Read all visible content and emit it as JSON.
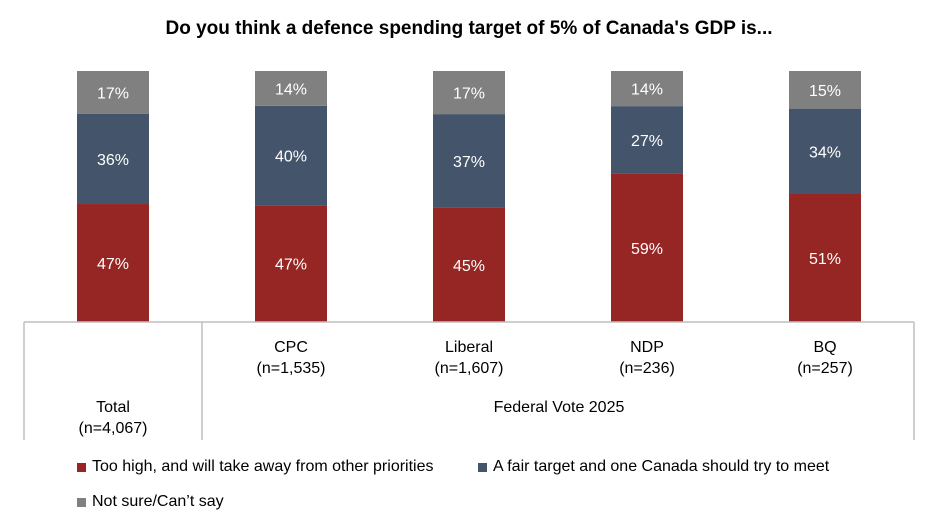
{
  "chart_data": {
    "type": "bar",
    "stacked": true,
    "orientation": "vertical",
    "title": "Do you think a defence spending target of 5% of Canada's  GDP is...",
    "categories": [
      "Total\n(n=4,067)",
      "CPC\n(n=1,535)",
      "Liberal\n(n=1,607)",
      "NDP\n(n=236)",
      "BQ\n(n=257)"
    ],
    "category_labels": [
      [
        "Total",
        "(n=4,067)"
      ],
      [
        "CPC",
        "(n=1,535)"
      ],
      [
        "Liberal",
        "(n=1,607)"
      ],
      [
        "NDP",
        "(n=236)"
      ],
      [
        "BQ",
        "(n=257)"
      ]
    ],
    "group_label": "Federal Vote 2025",
    "series": [
      {
        "name": "Too high, and will take away from other priorities",
        "color": "#962623",
        "values": [
          47,
          47,
          45,
          59,
          51
        ]
      },
      {
        "name": "A fair target and one Canada should try to meet",
        "color": "#44546a",
        "values": [
          36,
          40,
          37,
          27,
          34
        ]
      },
      {
        "name": "Not sure/Can’t say",
        "color": "#808080",
        "values": [
          17,
          14,
          17,
          14,
          15
        ]
      }
    ],
    "value_suffix": "%",
    "ylim": [
      0,
      100
    ],
    "grid": false,
    "legend_position": "bottom"
  }
}
